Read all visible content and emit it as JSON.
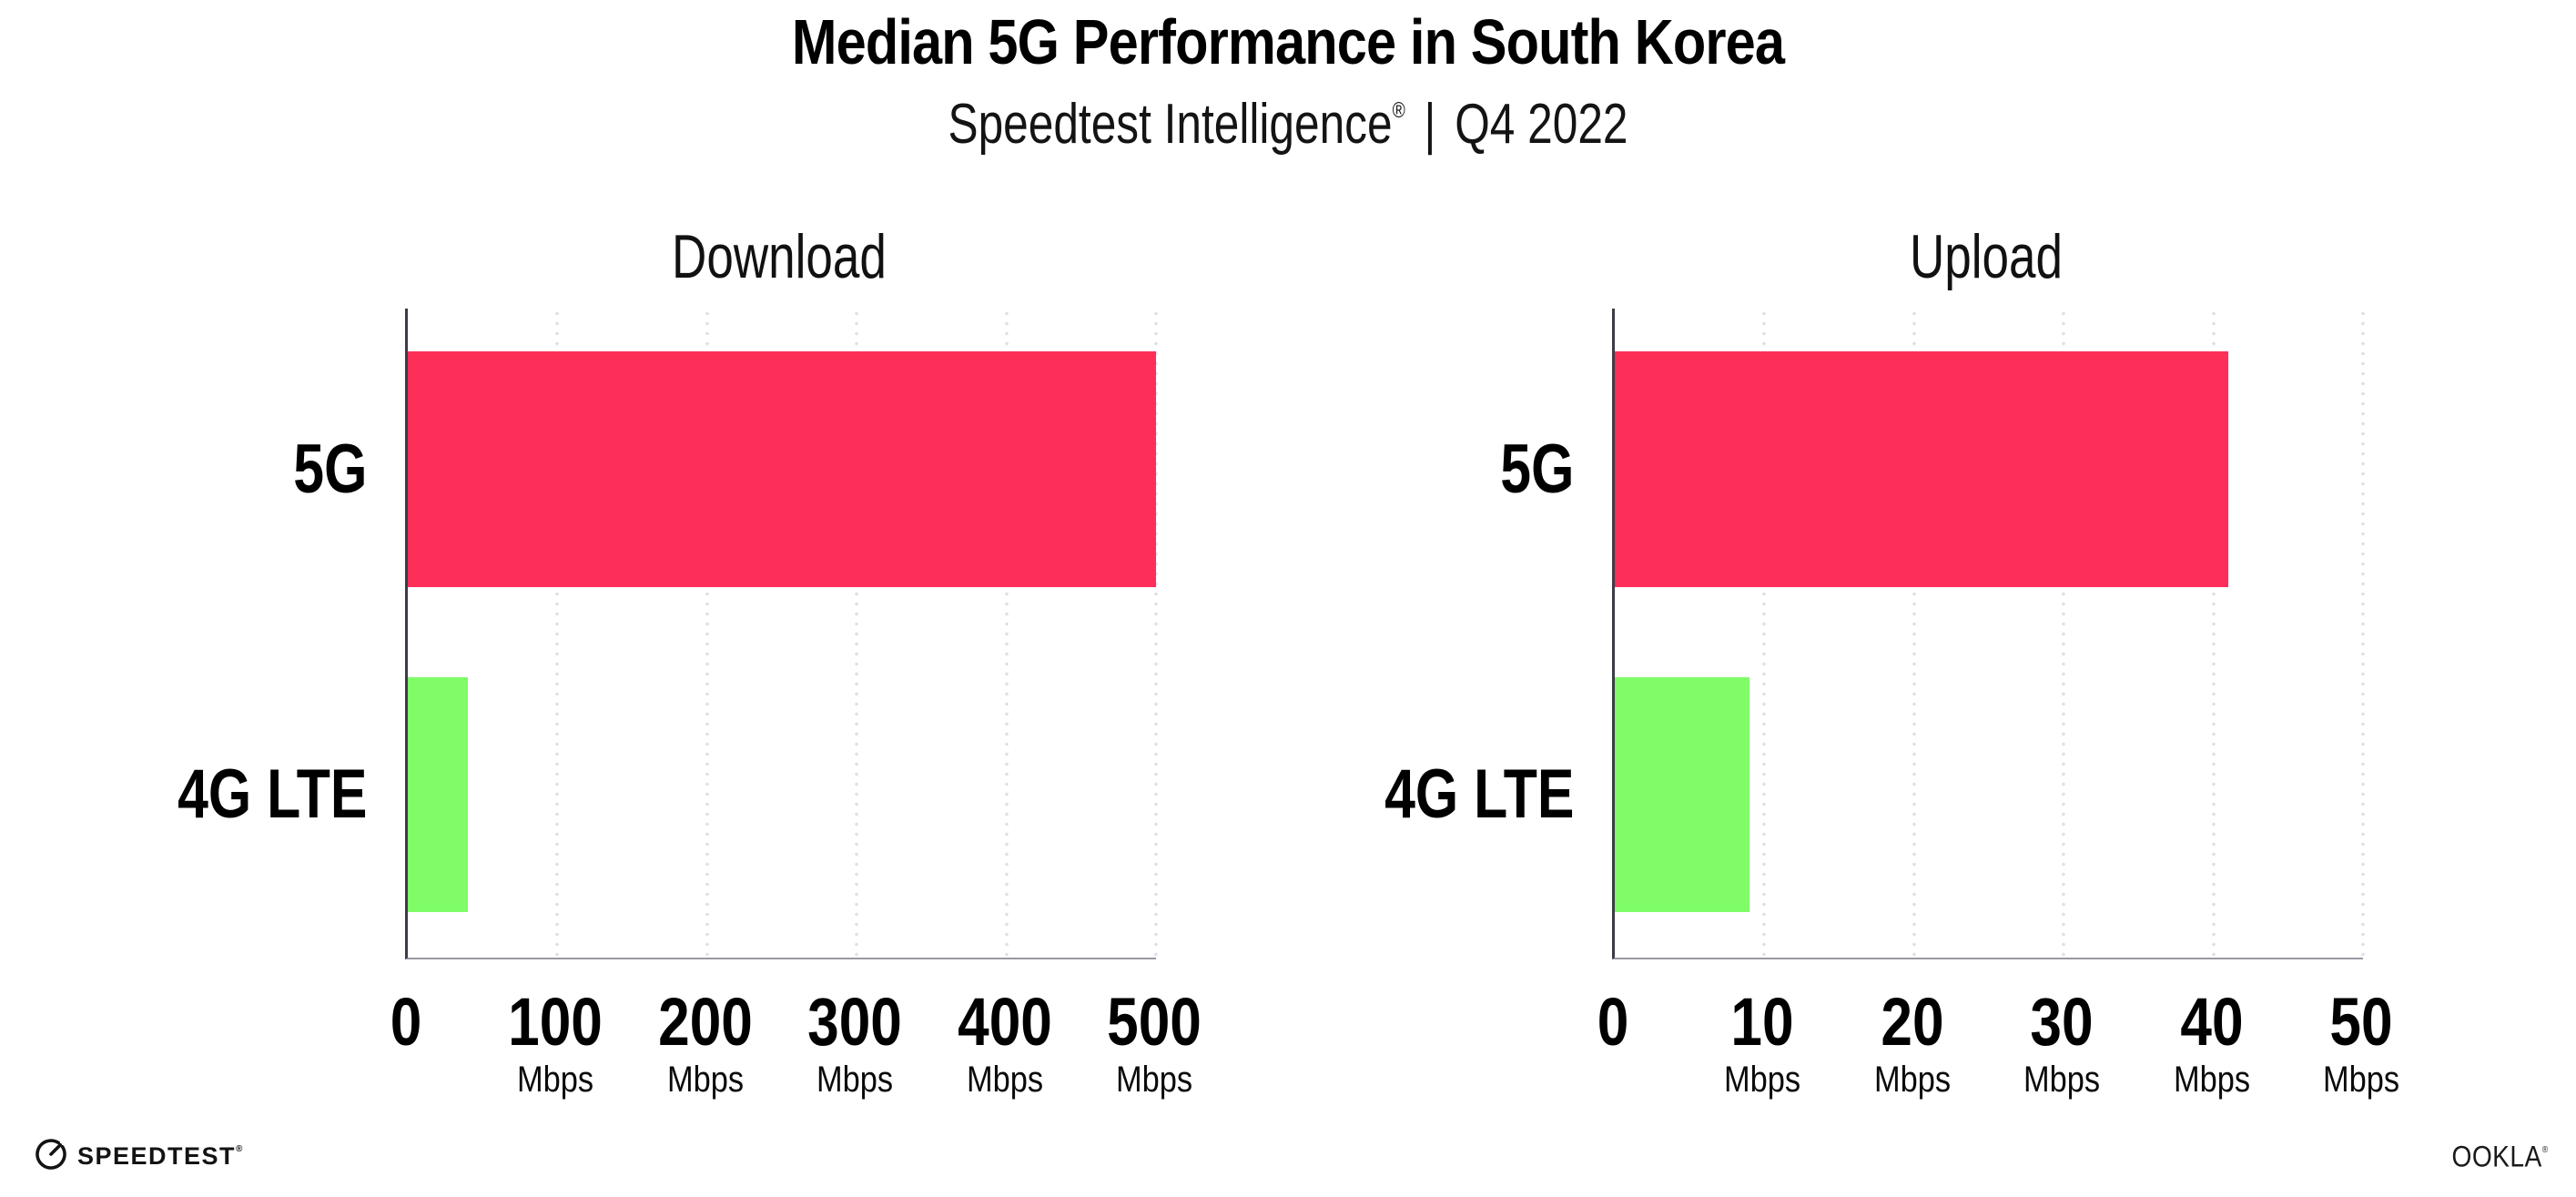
{
  "header": {
    "title": "Median 5G Performance in South Korea",
    "subtitle_brand": "Speedtest Intelligence",
    "subtitle_reg_mark": "®",
    "subtitle_separator": "|",
    "subtitle_period": "Q4 2022"
  },
  "colors": {
    "bar_5g": "#fd2f58",
    "bar_4g_lte": "#80fc69",
    "gridline": "#dfdfe9",
    "y_axis": "#3c3c46",
    "x_axis": "#9a9aa4",
    "text": "#000000"
  },
  "chart_data": [
    {
      "type": "bar",
      "orientation": "horizontal",
      "title": "Download",
      "categories": [
        "5G",
        "4G LTE"
      ],
      "values": [
        500,
        40
      ],
      "unit": "Mbps",
      "xlabel": "",
      "ylabel": "",
      "xlim": [
        0,
        500
      ],
      "xticks": [
        0,
        100,
        200,
        300,
        400,
        500
      ],
      "grid": "vertical-dotted",
      "legend": "none",
      "bar_colors": [
        "#fd2f58",
        "#80fc69"
      ]
    },
    {
      "type": "bar",
      "orientation": "horizontal",
      "title": "Upload",
      "categories": [
        "5G",
        "4G LTE"
      ],
      "values": [
        41,
        9
      ],
      "unit": "Mbps",
      "xlabel": "",
      "ylabel": "",
      "xlim": [
        0,
        50
      ],
      "xticks": [
        0,
        10,
        20,
        30,
        40,
        50
      ],
      "grid": "vertical-dotted",
      "legend": "none",
      "bar_colors": [
        "#fd2f58",
        "#80fc69"
      ]
    }
  ],
  "footer": {
    "speedtest_logo_text": "SPEEDTEST",
    "speedtest_reg_mark": "®",
    "ookla_logo_text": "OOKLA",
    "ookla_reg_mark": "®"
  }
}
